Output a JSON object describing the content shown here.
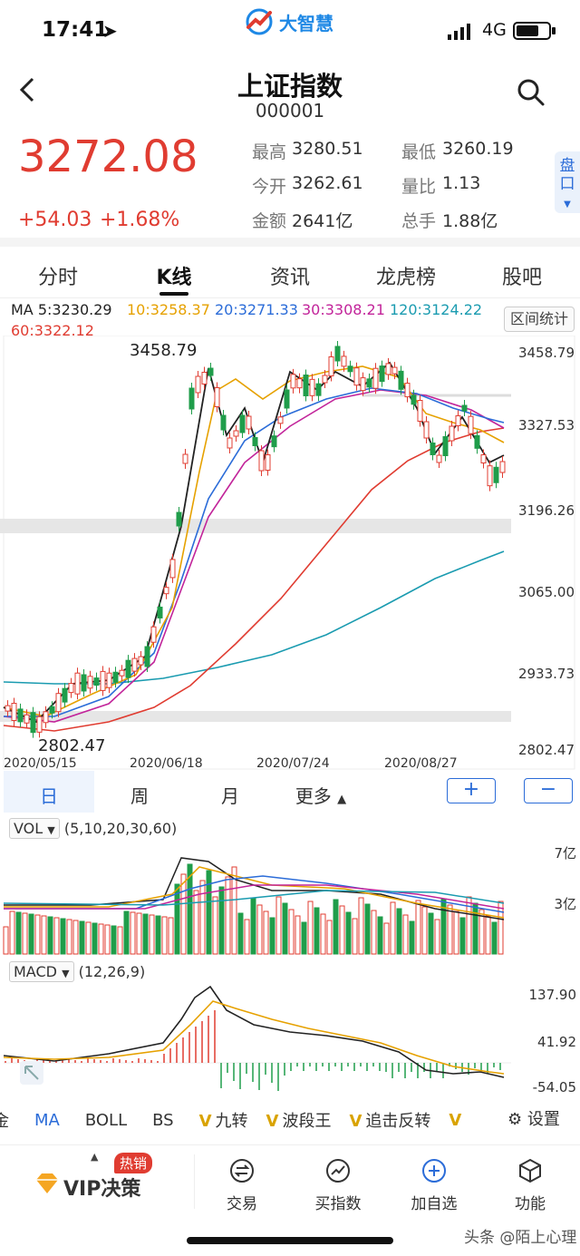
{
  "status": {
    "time": "17:41",
    "network": "4G"
  },
  "app": {
    "logo_text": "大智慧"
  },
  "header": {
    "title": "上证指数",
    "code": "000001"
  },
  "quote": {
    "price": "3272.08",
    "change": "+54.03",
    "change_pct": "+1.68%",
    "stats": [
      {
        "label": "最高",
        "value": "3280.51"
      },
      {
        "label": "最低",
        "value": "3260.19"
      },
      {
        "label": "今开",
        "value": "3262.61"
      },
      {
        "label": "量比",
        "value": "1.13"
      },
      {
        "label": "金额",
        "value": "2641亿"
      },
      {
        "label": "总手",
        "value": "1.88亿"
      }
    ],
    "pankou": "盘口"
  },
  "tabs": [
    {
      "label": "分时"
    },
    {
      "label": "K线"
    },
    {
      "label": "资讯"
    },
    {
      "label": "龙虎榜"
    },
    {
      "label": "股吧"
    }
  ],
  "kline": {
    "ma_items": [
      {
        "label": "MA 5:3230.29",
        "color": "#222222"
      },
      {
        "label": "10:3258.37",
        "color": "#e6a100"
      },
      {
        "label": "20:3271.33",
        "color": "#2b6cd8"
      },
      {
        "label": "30:3308.21",
        "color": "#c2249a"
      },
      {
        "label": "120:3124.22",
        "color": "#1a9bb0"
      },
      {
        "label": "60:3322.12",
        "color": "#e03c31"
      }
    ],
    "range_stats_button": "区间统计",
    "y_labels": [
      "3458.79",
      "3327.53",
      "3196.26",
      "3065.00",
      "2933.73",
      "2802.47"
    ],
    "x_labels": [
      "2020/05/15",
      "2020/06/18",
      "2020/07/24",
      "2020/08/27"
    ],
    "high_mark": "3458.79",
    "low_mark": "2802.47"
  },
  "periods": [
    {
      "label": "日"
    },
    {
      "label": "周"
    },
    {
      "label": "月"
    },
    {
      "label": "更多"
    }
  ],
  "zoom": {
    "plus": "+",
    "minus": "−"
  },
  "volume": {
    "name": "VOL",
    "params": "(5,10,20,30,60)",
    "y_labels": [
      "7亿",
      "3亿"
    ]
  },
  "macd": {
    "name": "MACD",
    "params": "(12,26,9)",
    "y_labels": [
      "137.90",
      "41.92",
      "-54.05"
    ]
  },
  "indicators": [
    {
      "label": "金",
      "vip": false
    },
    {
      "label": "MA",
      "vip": false
    },
    {
      "label": "BOLL",
      "vip": false
    },
    {
      "label": "BS",
      "vip": false
    },
    {
      "label": "九转",
      "vip": true
    },
    {
      "label": "波段王",
      "vip": true
    },
    {
      "label": "追击反转",
      "vip": true
    },
    {
      "label": "",
      "vip": true
    }
  ],
  "settings_label": "设置",
  "bottom": {
    "vip_label": "VIP决策",
    "hot_badge": "热销",
    "items": [
      {
        "label": "交易"
      },
      {
        "label": "买指数"
      },
      {
        "label": "加自选"
      },
      {
        "label": "功能"
      }
    ]
  },
  "watermark": "头条 @陌上心理"
}
